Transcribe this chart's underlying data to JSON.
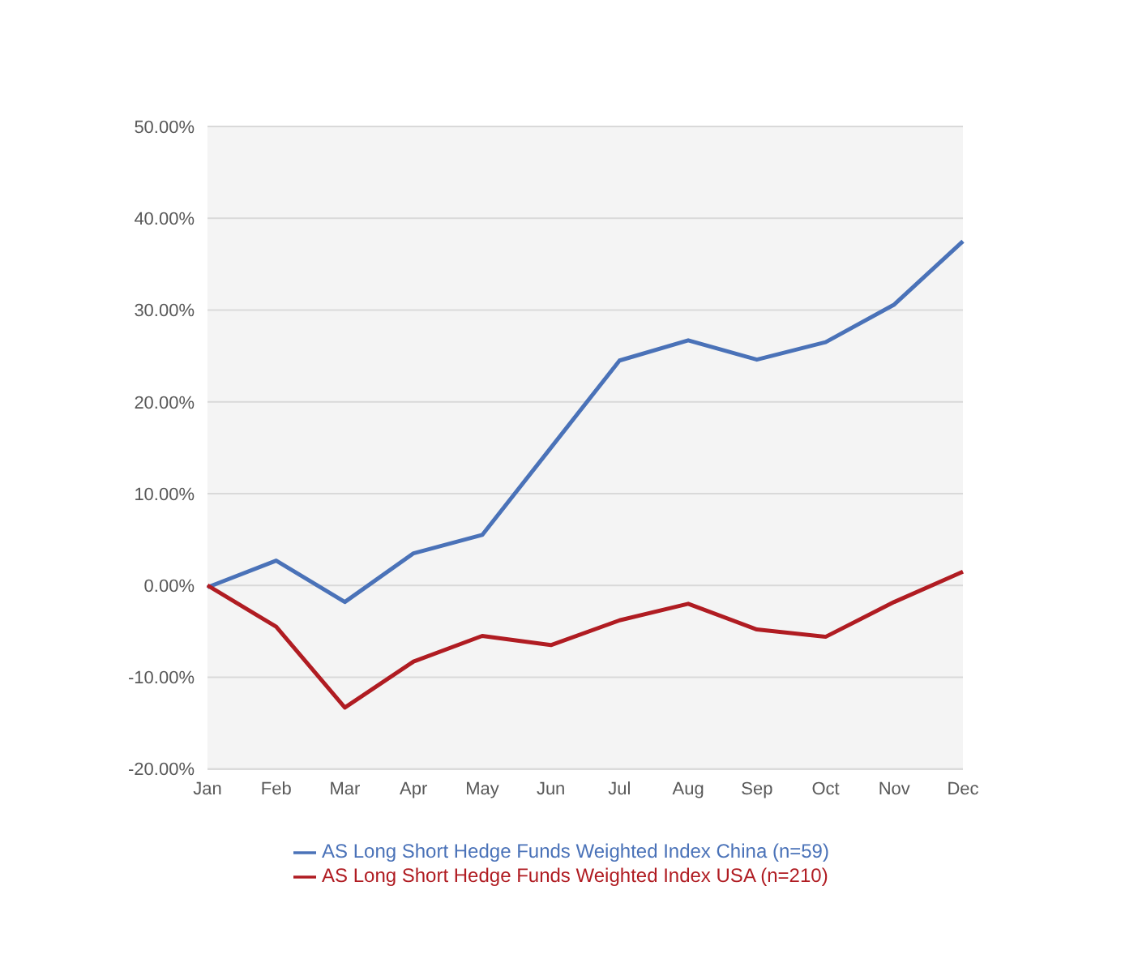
{
  "chart_data": {
    "type": "line",
    "categories": [
      "Jan",
      "Feb",
      "Mar",
      "Apr",
      "May",
      "Jun",
      "Jul",
      "Aug",
      "Sep",
      "Oct",
      "Nov",
      "Dec"
    ],
    "series": [
      {
        "name": "AS Long Short Hedge Funds Weighted Index China (n=59)",
        "color": "#4a72b8",
        "values": [
          -0.2,
          2.7,
          -1.8,
          3.5,
          5.5,
          15,
          24.5,
          26.7,
          24.6,
          26.5,
          30.6,
          37.5
        ]
      },
      {
        "name": "AS Long Short Hedge Funds Weighted Index USA (n=210)",
        "color": "#b01c22",
        "values": [
          0,
          -4.5,
          -13.3,
          -8.3,
          -5.5,
          -6.5,
          -3.8,
          -2,
          -4.8,
          -5.6,
          -1.8,
          1.5
        ]
      }
    ],
    "ylim": [
      -20,
      50
    ],
    "yticks": [
      {
        "value": -20,
        "label": "-20.00%"
      },
      {
        "value": -10,
        "label": "-10.00%"
      },
      {
        "value": 0,
        "label": "0.00%"
      },
      {
        "value": 10,
        "label": "10.00%"
      },
      {
        "value": 20,
        "label": "20.00%"
      },
      {
        "value": 30,
        "label": "30.00%"
      },
      {
        "value": 40,
        "label": "40.00%"
      },
      {
        "value": 50,
        "label": "50.00%"
      }
    ],
    "grid": "y",
    "legend": "bottom",
    "marker": "none",
    "line_style": "solid"
  }
}
